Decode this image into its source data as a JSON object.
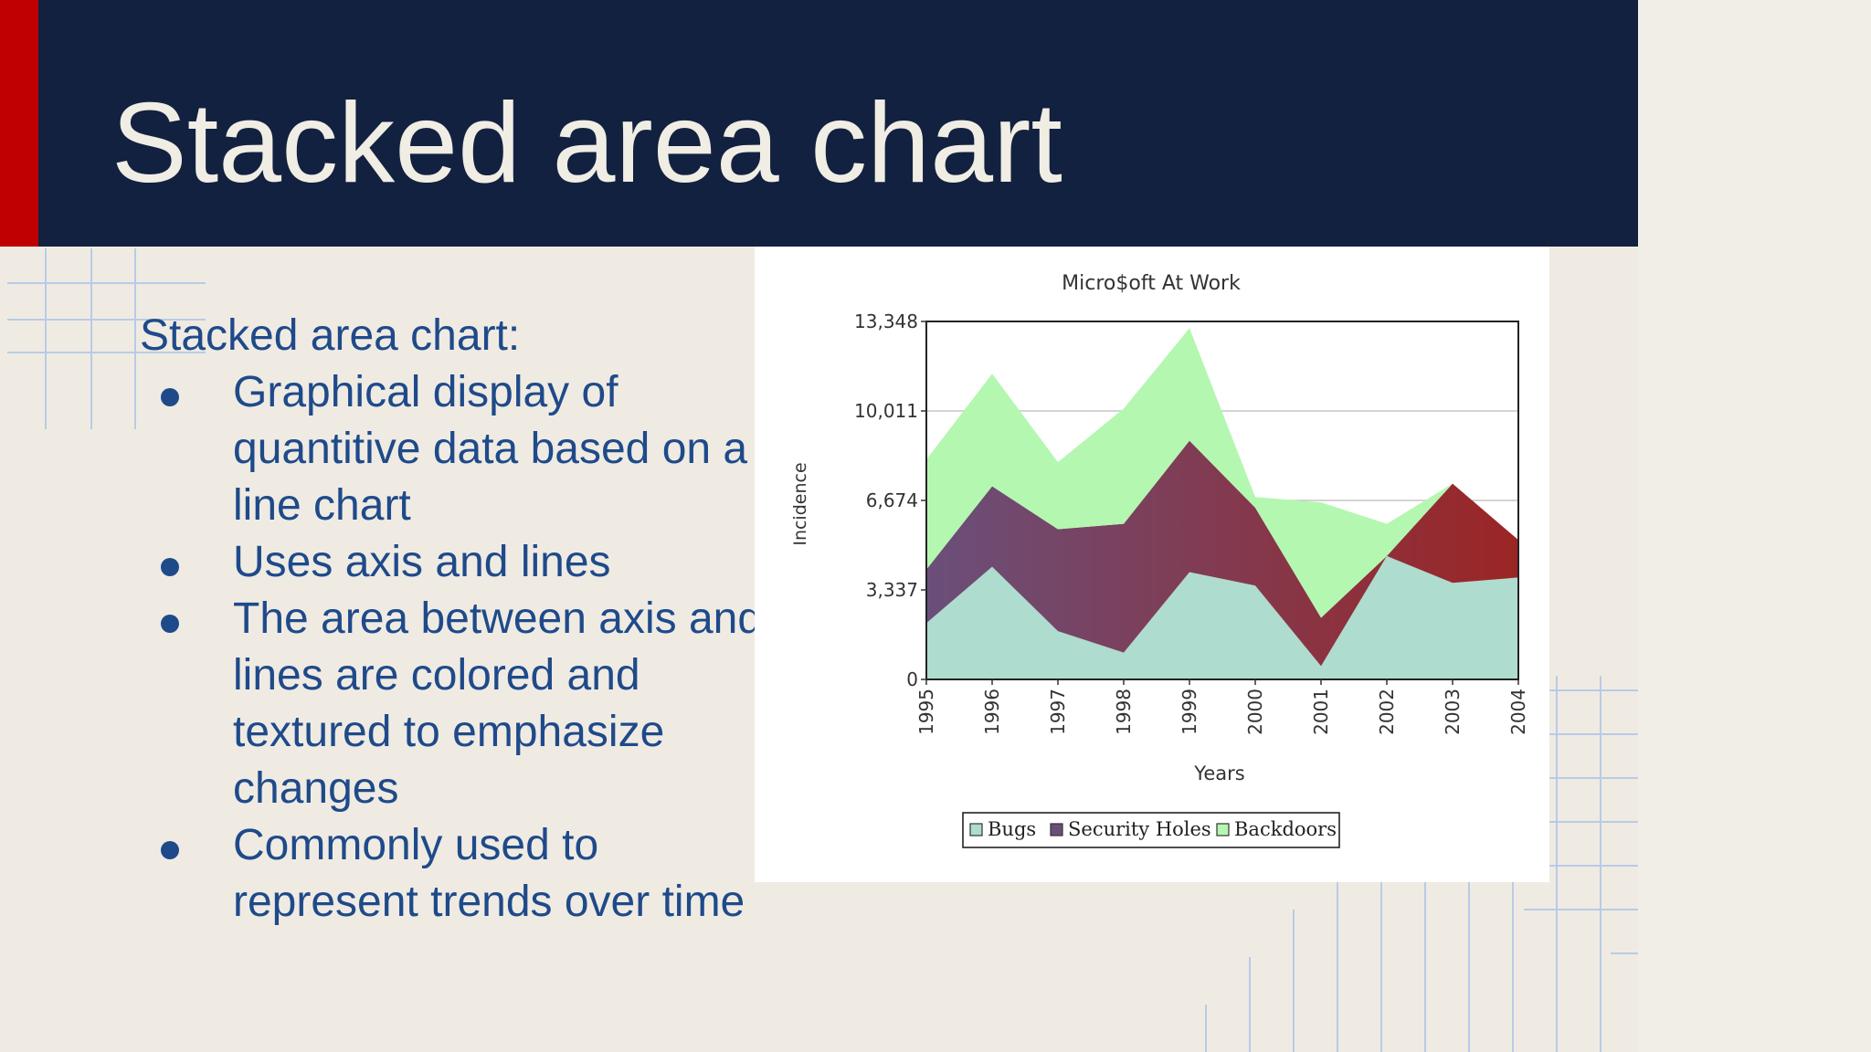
{
  "slide": {
    "title": "Stacked area chart",
    "intro": "Stacked area chart:",
    "bullets": [
      "Graphical display of quantitive data based on a line chart",
      "Uses axis and lines",
      "The area between axis and lines are colored and textured to emphasize changes",
      "Commonly used to represent trends over time"
    ],
    "colors": {
      "title_bar": "#132140",
      "accent": "#c00000",
      "title_text": "#f0ede4",
      "body_text": "#1f4a8a",
      "background": "#efebe3"
    }
  },
  "chart_data": {
    "type": "area",
    "stacked": true,
    "title": "Micro$oft At Work",
    "xlabel": "Years",
    "ylabel": "Incidence",
    "x": [
      "1995",
      "1996",
      "1997",
      "1998",
      "1999",
      "2000",
      "2001",
      "2002",
      "2003",
      "2004"
    ],
    "ylim": [
      0,
      13348
    ],
    "yticks": [
      0,
      3337,
      6674,
      10011,
      13348
    ],
    "ytick_labels": [
      "0",
      "3,337",
      "6,674",
      "10,011",
      "13,348"
    ],
    "grid": true,
    "legend_position": "bottom",
    "series": [
      {
        "name": "Bugs",
        "color": "#aedcce",
        "values": [
          2100,
          4200,
          1800,
          1000,
          4000,
          3500,
          500,
          4600,
          3600,
          3800
        ]
      },
      {
        "name": "Security Holes",
        "color": "#6a4f7a",
        "gradient_end": "#9b2525",
        "values": [
          2000,
          3000,
          3800,
          4800,
          4900,
          2900,
          1800,
          0,
          3700,
          1400
        ]
      },
      {
        "name": "Backdoors",
        "color": "#b4f7b0",
        "values": [
          4100,
          4200,
          2500,
          4300,
          4200,
          400,
          4300,
          1200,
          0,
          0
        ]
      }
    ]
  }
}
